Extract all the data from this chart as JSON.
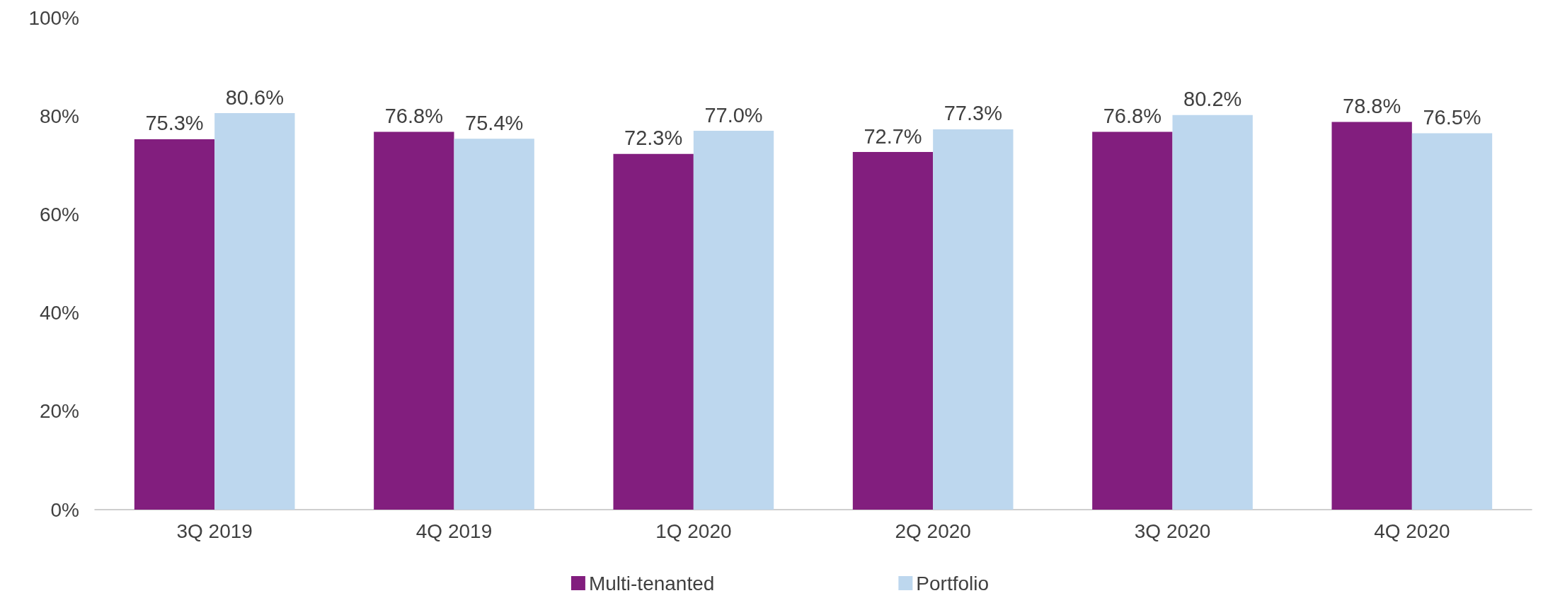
{
  "chart_data": {
    "type": "bar",
    "categories": [
      "3Q 2019",
      "4Q 2019",
      "1Q 2020",
      "2Q 2020",
      "3Q 2020",
      "4Q 2020"
    ],
    "series": [
      {
        "name": "Multi-tenanted",
        "color": "#821e7e",
        "values": [
          75.3,
          76.8,
          72.3,
          72.7,
          76.8,
          78.8
        ],
        "value_labels": [
          "75.3%",
          "76.8%",
          "72.3%",
          "72.7%",
          "76.8%",
          "78.8%"
        ]
      },
      {
        "name": "Portfolio",
        "color": "#bdd7ee",
        "values": [
          80.6,
          75.4,
          77.0,
          77.3,
          80.2,
          76.5
        ],
        "value_labels": [
          "80.6%",
          "75.4%",
          "77.0%",
          "77.3%",
          "80.2%",
          "76.5%"
        ]
      }
    ],
    "ylim": [
      0,
      100
    ],
    "yticks": [
      {
        "value": 0,
        "label": "0%"
      },
      {
        "value": 20,
        "label": "20%"
      },
      {
        "value": 40,
        "label": "40%"
      },
      {
        "value": 60,
        "label": "60%"
      },
      {
        "value": 80,
        "label": "80%"
      },
      {
        "value": 100,
        "label": "100%"
      }
    ],
    "grid": false,
    "legend": "bottom"
  }
}
